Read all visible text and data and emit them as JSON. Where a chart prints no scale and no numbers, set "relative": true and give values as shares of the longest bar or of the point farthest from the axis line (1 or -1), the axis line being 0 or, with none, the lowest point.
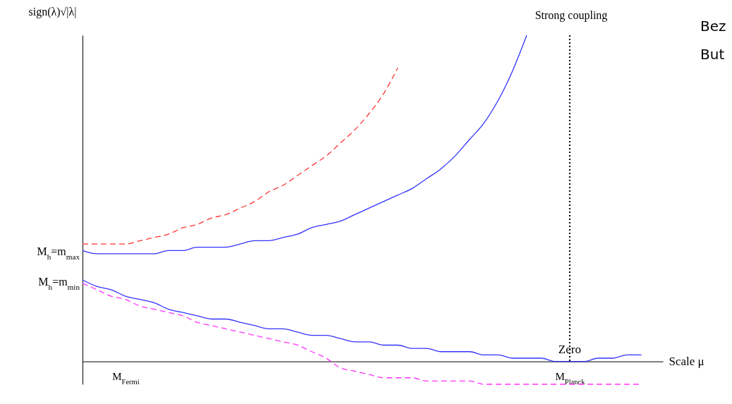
{
  "chart_data": {
    "type": "line",
    "relative": true,
    "xlabel": "Scale μ",
    "ylabel": "sign(λ)√|λ|",
    "grid": false,
    "categories": [
      null,
      null,
      null,
      "M$_{Fermi}$",
      null,
      null,
      null,
      null,
      null,
      null,
      null,
      null,
      null,
      null,
      null,
      null,
      null,
      null,
      null,
      null,
      null,
      null,
      null,
      null,
      null,
      null,
      null,
      null,
      null,
      null,
      null,
      null,
      null,
      null,
      "M$_{Planck}$",
      null,
      null,
      null,
      null,
      null,
      null
    ],
    "series": [
      {
        "color": "#ff3333",
        "line_style": "dashed",
        "values": [
          0.36,
          0.36,
          0.36,
          0.36,
          0.37,
          0.38,
          0.39,
          0.41,
          0.42,
          0.44,
          0.45,
          0.47,
          0.49,
          0.52,
          0.54,
          0.57,
          0.6,
          0.63,
          0.67,
          0.71,
          0.76,
          0.82,
          0.9,
          null,
          null,
          null,
          null,
          null,
          null,
          null,
          null,
          null,
          null,
          null,
          null,
          null,
          null,
          null,
          null,
          null,
          null
        ]
      },
      {
        "color": "#3333ff",
        "line_style": "solid",
        "values": [
          0.34,
          0.33,
          0.33,
          0.33,
          0.33,
          0.33,
          0.34,
          0.34,
          0.35,
          0.35,
          0.35,
          0.36,
          0.37,
          0.37,
          0.38,
          0.39,
          0.41,
          0.42,
          0.43,
          0.45,
          0.47,
          0.49,
          0.51,
          0.53,
          0.56,
          0.59,
          0.63,
          0.68,
          0.73,
          0.8,
          0.89,
          1,
          null,
          null,
          null,
          null,
          null,
          null,
          null,
          null,
          null
        ]
      },
      {
        "color": "#3333ff",
        "line_style": "solid",
        "values": [
          0.25,
          0.23,
          0.22,
          0.2,
          0.19,
          0.18,
          0.16,
          0.15,
          0.14,
          0.13,
          0.13,
          0.12,
          0.11,
          0.1,
          0.1,
          0.09,
          0.08,
          0.08,
          0.07,
          0.06,
          0.06,
          0.05,
          0.05,
          0.04,
          0.04,
          0.03,
          0.03,
          0.03,
          0.02,
          0.02,
          0.01,
          0.01,
          0.01,
          0,
          0,
          0,
          0.01,
          0.01,
          0.02,
          0.02,
          null
        ]
      },
      {
        "color": "#ff33ff",
        "line_style": "dashed",
        "values": [
          0.24,
          0.22,
          0.2,
          0.19,
          0.17,
          0.16,
          0.15,
          0.14,
          0.12,
          0.11,
          0.1,
          0.09,
          0.08,
          0.07,
          0.06,
          0.05,
          0.03,
          0.01,
          -0.02,
          -0.03,
          -0.04,
          -0.05,
          -0.05,
          -0.05,
          -0.06,
          -0.06,
          -0.06,
          -0.06,
          -0.07,
          -0.07,
          -0.07,
          -0.07,
          -0.07,
          -0.07,
          -0.07,
          -0.07,
          -0.07,
          -0.07,
          -0.07,
          -0.07,
          null
        ]
      }
    ],
    "ref_lines": [
      {
        "axis": "x",
        "value": "M$_{Planck}$",
        "color": "#000000",
        "line_style": "dotted"
      }
    ],
    "annotations": [
      "M$_{h}$=m$_{max}$",
      "M$_{h}$=m$_{min}$",
      {
        "text": "Zero",
        "x": "M$_{Planck}$",
        "y": 0
      },
      "Strong coupling",
      "Bez",
      "But"
    ]
  }
}
